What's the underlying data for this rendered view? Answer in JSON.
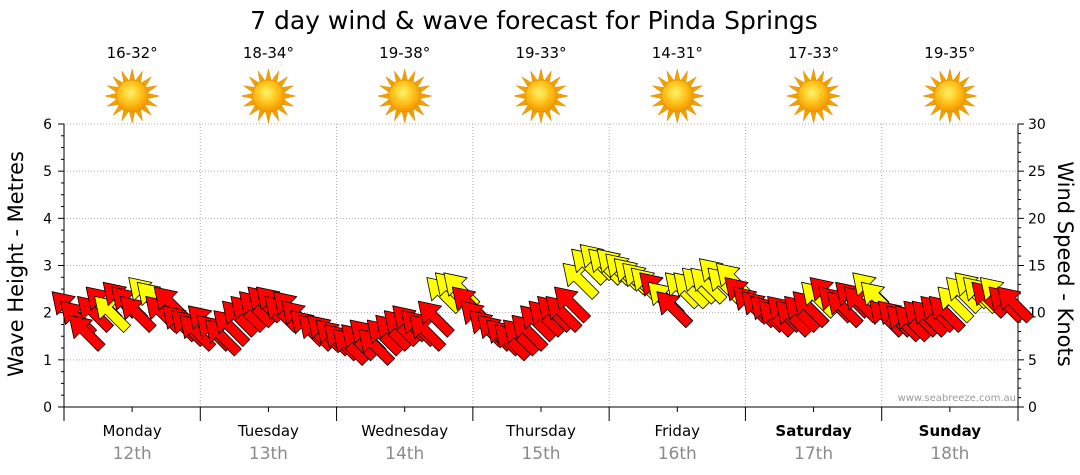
{
  "title": "7 day wind & wave forecast for Pinda Springs",
  "watermark": "www.seabreeze.com.au",
  "colors": {
    "strong_wind": "#ff0000",
    "moderate_wind": "#ffff00",
    "sun": "#f5a800",
    "grid": "#aaaaaa"
  },
  "days": [
    {
      "name": "Monday",
      "date": "12th",
      "temp": "16-32°",
      "weekend": false,
      "icon": "sun-icon"
    },
    {
      "name": "Tuesday",
      "date": "13th",
      "temp": "18-34°",
      "weekend": false,
      "icon": "sun-icon"
    },
    {
      "name": "Wednesday",
      "date": "14th",
      "temp": "19-38°",
      "weekend": false,
      "icon": "sun-icon"
    },
    {
      "name": "Thursday",
      "date": "15th",
      "temp": "19-33°",
      "weekend": false,
      "icon": "sun-icon"
    },
    {
      "name": "Friday",
      "date": "16th",
      "temp": "14-31°",
      "weekend": false,
      "icon": "sun-icon"
    },
    {
      "name": "Saturday",
      "date": "17th",
      "temp": "17-33°",
      "weekend": true,
      "icon": "sun-icon"
    },
    {
      "name": "Sunday",
      "date": "18th",
      "temp": "19-35°",
      "weekend": true,
      "icon": "sun-icon"
    }
  ],
  "chart_data": {
    "type": "wind-arrows",
    "left_axis": {
      "label": "Wave Height - Metres",
      "range": [
        0,
        6
      ],
      "ticks": [
        0,
        1,
        2,
        3,
        4,
        5,
        6
      ]
    },
    "right_axis": {
      "label": "Wind Speed - Knots",
      "range": [
        0,
        30
      ],
      "ticks": [
        0,
        5,
        10,
        15,
        20,
        25,
        30
      ]
    },
    "wind_points_per_day": 16,
    "wind_speed_knots": [
      10.5,
      9.5,
      8,
      10,
      11,
      10,
      11.5,
      11,
      10,
      12,
      11.5,
      10,
      11,
      9,
      8.5,
      8,
      9,
      8,
      7.5,
      8.5,
      9.5,
      10,
      10.5,
      11,
      11,
      10,
      10.5,
      9.5,
      8.5,
      8,
      8,
      7.5,
      7,
      6.5,
      7,
      7.5,
      6.5,
      7.5,
      8,
      8.5,
      9,
      8.5,
      8,
      9.5,
      12,
      12.5,
      12.5,
      11,
      9.5,
      8.5,
      8,
      7.5,
      7,
      7.5,
      8,
      9,
      9.5,
      10,
      10,
      11,
      13.5,
      15,
      15.5,
      15,
      15,
      14.5,
      14,
      13.5,
      13,
      12.5,
      11.5,
      10.5,
      12.5,
      12.5,
      13,
      13,
      14,
      13,
      13.5,
      12,
      11,
      10.5,
      10,
      9.5,
      10,
      9.5,
      10,
      10.5,
      11.5,
      12,
      11,
      10.5,
      11.5,
      11,
      12.5,
      11.5,
      9.5,
      9.5,
      9,
      9,
      9.5,
      9.5,
      10,
      10,
      11,
      12,
      12.5,
      12,
      11.5,
      12,
      11,
      11
    ],
    "wind_strength": [
      "strong",
      "strong",
      "strong",
      "strong",
      "strong",
      "moderate",
      "strong",
      "strong",
      "strong",
      "moderate",
      "moderate",
      "strong",
      "strong",
      "strong",
      "strong",
      "strong",
      "strong",
      "strong",
      "strong",
      "strong",
      "strong",
      "strong",
      "strong",
      "strong",
      "strong",
      "strong",
      "strong",
      "strong",
      "strong",
      "strong",
      "strong",
      "strong",
      "strong",
      "strong",
      "strong",
      "strong",
      "strong",
      "strong",
      "strong",
      "strong",
      "strong",
      "strong",
      "strong",
      "strong",
      "moderate",
      "moderate",
      "moderate",
      "strong",
      "strong",
      "strong",
      "strong",
      "strong",
      "strong",
      "strong",
      "strong",
      "strong",
      "strong",
      "strong",
      "strong",
      "strong",
      "moderate",
      "moderate",
      "moderate",
      "moderate",
      "moderate",
      "moderate",
      "moderate",
      "moderate",
      "moderate",
      "strong",
      "moderate",
      "strong",
      "moderate",
      "moderate",
      "moderate",
      "moderate",
      "moderate",
      "moderate",
      "moderate",
      "strong",
      "strong",
      "strong",
      "strong",
      "strong",
      "strong",
      "strong",
      "strong",
      "strong",
      "moderate",
      "strong",
      "strong",
      "strong",
      "strong",
      "strong",
      "moderate",
      "moderate",
      "strong",
      "strong",
      "strong",
      "strong",
      "strong",
      "strong",
      "strong",
      "strong",
      "moderate",
      "moderate",
      "moderate",
      "moderate",
      "strong",
      "moderate",
      "strong",
      "strong"
    ],
    "wind_direction": "south-easterly",
    "wave_height_m": []
  }
}
